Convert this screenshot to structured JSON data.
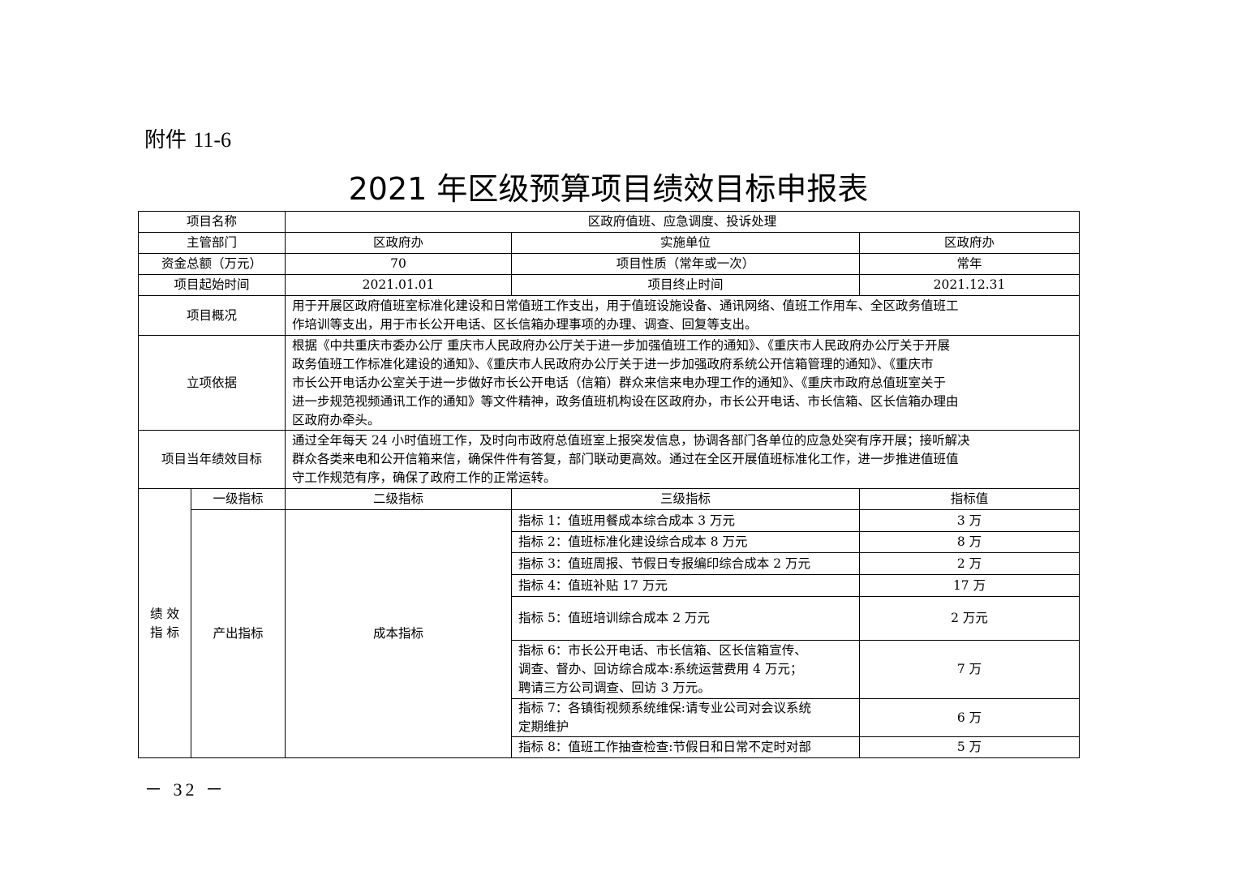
{
  "attachment_label": "附件",
  "attachment_number": "11-6",
  "title": "2021 年区级预算项目绩效目标申报表",
  "rows": {
    "project_name_label": "项目名称",
    "project_name": "区政府值班、应急调度、投诉处理",
    "dept_label": "主管部门",
    "dept": "区政府办",
    "impl_label": "实施单位",
    "impl": "区政府办",
    "fund_label": "资金总额（万元）",
    "fund": "70",
    "nature_label": "项目性质（常年或一次）",
    "nature": "常年",
    "start_label": "项目起始时间",
    "start": "2021.01.01",
    "end_label": "项目终止时间",
    "end": "2021.12.31",
    "overview_label": "项目概况",
    "overview_lines": [
      "用于开展区政府值班室标准化建设和日常值班工作支出，用于值班设施设备、通讯网络、值班工作用车、全区政务值班工",
      "作培训等支出，用于市长公开电话、区长信箱办理事项的办理、调查、回复等支出。"
    ],
    "basis_label": "立项依据",
    "basis_lines": [
      "根据《中共重庆市委办公厅 重庆市人民政府办公厅关于进一步加强值班工作的通知》、《重庆市人民政府办公厅关于开展",
      "政务值班工作标准化建设的通知》、《重庆市人民政府办公厅关于进一步加强政府系统公开信箱管理的通知》、《重庆市",
      "市长公开电话办公室关于进一步做好市长公开电话（信箱）群众来信来电办理工作的通知》、《重庆市政府总值班室关于",
      "进一步规范视频通讯工作的通知》等文件精神，政务值班机构设在区政府办，市长公开电话、市长信箱、区长信箱办理由",
      "区政府办牵头。"
    ],
    "goal_label": "项目当年绩效目标",
    "goal_lines": [
      "通过全年每天 24 小时值班工作，及时向市政府总值班室上报突发信息，协调各部门各单位的应急处突有序开展；接听解决",
      "群众各类来电和公开信箱来信，确保件件有答复，部门联动更高效。通过在全区开展值班标准化工作，进一步推进值班值",
      "守工作规范有序，确保了政府工作的正常运转。"
    ]
  },
  "indicators": {
    "section_label_lines": [
      "绩 效",
      "指 标"
    ],
    "headers": [
      "一级指标",
      "二级指标",
      "三级指标",
      "指标值"
    ],
    "level1": "产出指标",
    "level2": "成本指标",
    "items": [
      {
        "lines": [
          "指标 1：值班用餐成本综合成本 3 万元"
        ],
        "value": "3 万"
      },
      {
        "lines": [
          "指标 2：值班标准化建设综合成本 8 万元"
        ],
        "value": "8 万"
      },
      {
        "lines": [
          "指标 3：值班周报、节假日专报编印综合成本 2 万元"
        ],
        "value": "2 万"
      },
      {
        "lines": [
          "指标 4：值班补贴 17 万元"
        ],
        "value": "17 万"
      },
      {
        "lines": [
          "指标 5：值班培训综合成本 2 万元"
        ],
        "value": "2 万元"
      },
      {
        "lines": [
          "指标 6：市长公开电话、市长信箱、区长信箱宣传、",
          "调查、督办、回访综合成本:系统运营费用 4 万元；",
          "聘请三方公司调查、回访 3 万元。"
        ],
        "value": "7 万"
      },
      {
        "lines": [
          "指标 7：各镇街视频系统维保:请专业公司对会议系统",
          "定期维护"
        ],
        "value": "6 万"
      },
      {
        "lines": [
          "指标 8：值班工作抽查检查:节假日和日常不定时对部"
        ],
        "value": "5 万"
      }
    ]
  },
  "page_number": "－ 32 －"
}
